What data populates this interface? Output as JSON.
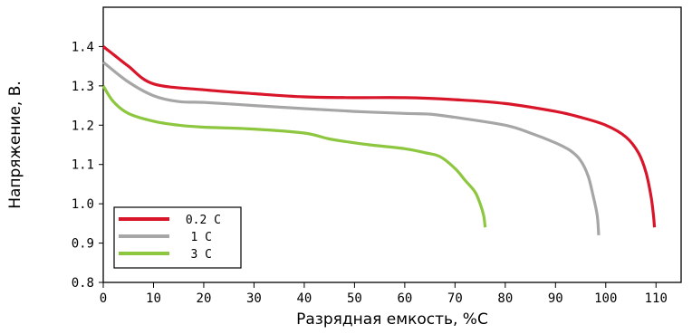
{
  "chart_data": {
    "type": "line",
    "title": "",
    "xlabel": "Разрядная емкость, %С",
    "ylabel": "Напряжение, В.",
    "xlim": [
      0,
      115
    ],
    "ylim": [
      0.8,
      1.5
    ],
    "x_ticks": [
      0,
      10,
      20,
      30,
      40,
      50,
      60,
      70,
      80,
      90,
      100,
      110
    ],
    "y_ticks": [
      0.8,
      0.9,
      1.0,
      1.1,
      1.2,
      1.3,
      1.4
    ],
    "y_tick_labels": [
      "0.8",
      "0.9",
      "1.0",
      "1.1",
      "1.2",
      "1.3",
      "1.4"
    ],
    "grid": false,
    "legend_position": "bottom-left",
    "series": [
      {
        "name": "0.2 C",
        "color": "#d9152a",
        "points": [
          [
            0,
            1.4
          ],
          [
            2,
            1.38
          ],
          [
            5,
            1.35
          ],
          [
            10,
            1.305
          ],
          [
            20,
            1.29
          ],
          [
            30,
            1.28
          ],
          [
            40,
            1.272
          ],
          [
            50,
            1.27
          ],
          [
            60,
            1.27
          ],
          [
            70,
            1.265
          ],
          [
            80,
            1.255
          ],
          [
            90,
            1.235
          ],
          [
            95,
            1.22
          ],
          [
            100,
            1.2
          ],
          [
            104,
            1.17
          ],
          [
            106.5,
            1.13
          ],
          [
            108,
            1.08
          ],
          [
            109,
            1.02
          ],
          [
            109.5,
            0.97
          ],
          [
            109.7,
            0.94
          ]
        ]
      },
      {
        "name": "1 C",
        "color": "#a6a6a6",
        "points": [
          [
            0,
            1.36
          ],
          [
            5,
            1.31
          ],
          [
            10,
            1.275
          ],
          [
            15,
            1.26
          ],
          [
            20,
            1.258
          ],
          [
            30,
            1.25
          ],
          [
            40,
            1.242
          ],
          [
            50,
            1.235
          ],
          [
            60,
            1.23
          ],
          [
            65,
            1.228
          ],
          [
            70,
            1.22
          ],
          [
            80,
            1.2
          ],
          [
            85,
            1.18
          ],
          [
            90,
            1.155
          ],
          [
            93,
            1.135
          ],
          [
            95,
            1.11
          ],
          [
            96.5,
            1.07
          ],
          [
            97.5,
            1.02
          ],
          [
            98.3,
            0.97
          ],
          [
            98.6,
            0.92
          ]
        ]
      },
      {
        "name": "3 C",
        "color": "#8dc63f",
        "points": [
          [
            0,
            1.3
          ],
          [
            2,
            1.26
          ],
          [
            5,
            1.23
          ],
          [
            10,
            1.21
          ],
          [
            15,
            1.2
          ],
          [
            20,
            1.195
          ],
          [
            30,
            1.19
          ],
          [
            40,
            1.18
          ],
          [
            45,
            1.165
          ],
          [
            50,
            1.155
          ],
          [
            53,
            1.15
          ],
          [
            60,
            1.14
          ],
          [
            64,
            1.13
          ],
          [
            67,
            1.12
          ],
          [
            70,
            1.09
          ],
          [
            72,
            1.06
          ],
          [
            74,
            1.03
          ],
          [
            75,
            1.0
          ],
          [
            75.7,
            0.97
          ],
          [
            76,
            0.94
          ]
        ]
      }
    ]
  }
}
